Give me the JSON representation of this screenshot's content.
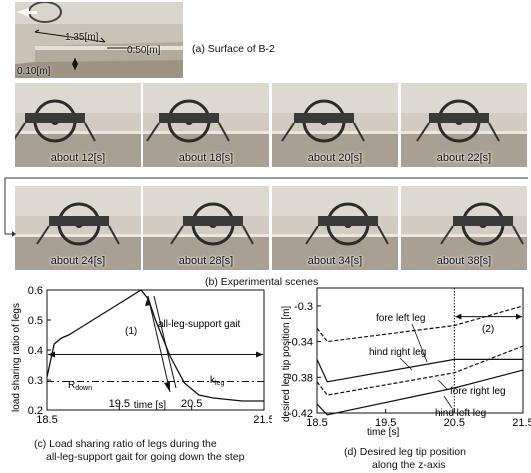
{
  "figure_a": {
    "caption": "(a) Surface of B-2",
    "dims": {
      "d1": "1.35[m]",
      "d2": "0.50[m]",
      "d3": "0.10[m]"
    }
  },
  "figure_b": {
    "caption": "(b) Experimental scenes",
    "frames": [
      "about 12[s]",
      "about 18[s]",
      "about 20[s]",
      "about 22[s]",
      "about 24[s]",
      "about 28[s]",
      "about 34[s]",
      "about 38[s]"
    ]
  },
  "figure_c": {
    "caption_line1": "(c) Load sharing ratio of legs during the",
    "caption_line2": "all-leg-support gait for going down the step",
    "annotations": {
      "gait": "all-leg-support gait",
      "phase": "(1)",
      "k_main": "k",
      "k_sub": "leg",
      "r_main": "R",
      "r_sub": "down"
    }
  },
  "figure_d": {
    "caption_line1": "(d) Desired leg tip position",
    "caption_line2": "along the z-axis",
    "annotations": {
      "phase": "(2)",
      "fore_left": "fore left leg",
      "hind_right": "hind right leg",
      "fore_right": "fore right leg",
      "hind_left": "hind left leg"
    }
  },
  "chart_data": [
    {
      "type": "line",
      "title": "",
      "xlabel": "time [s]",
      "ylabel": "load sharing ratio of legs",
      "xlim": [
        18.5,
        21.5
      ],
      "ylim": [
        0.2,
        0.6
      ],
      "xticks": [
        "18.5",
        "19.5",
        "20.5",
        "21.5"
      ],
      "yticks": [
        "0.2",
        "0.3",
        "0.4",
        "0.5",
        "0.6"
      ],
      "series": [
        {
          "name": "k_leg",
          "x": [
            18.5,
            18.6,
            18.7,
            18.8,
            19.0,
            19.2,
            19.4,
            19.6,
            19.8,
            19.9,
            20.0,
            20.2,
            20.4,
            20.6,
            20.8,
            21.0,
            21.2,
            21.5
          ],
          "values": [
            0.31,
            0.42,
            0.44,
            0.45,
            0.48,
            0.51,
            0.54,
            0.57,
            0.6,
            0.57,
            0.5,
            0.38,
            0.29,
            0.25,
            0.24,
            0.235,
            0.23,
            0.23
          ]
        },
        {
          "name": "R_down",
          "x": [
            18.5,
            21.5
          ],
          "values": [
            0.295,
            0.295
          ]
        }
      ],
      "gait_range": [
        18.5,
        21.5
      ]
    },
    {
      "type": "line",
      "title": "",
      "xlabel": "time [s]",
      "ylabel": "desired leg tip position [m]",
      "xlim": [
        18.5,
        21.5
      ],
      "ylim": [
        -0.42,
        -0.28
      ],
      "xticks": [
        "18.5",
        "19.5",
        "20.5",
        "21.5"
      ],
      "yticks": [
        "-0.3",
        "-0.34",
        "-0.38",
        "-0.42"
      ],
      "vline_x": 20.5,
      "phase2_range": [
        20.5,
        21.5
      ],
      "series": [
        {
          "name": "fore left leg",
          "x": [
            18.5,
            18.65,
            20.5,
            21.5
          ],
          "values": [
            -0.325,
            -0.34,
            -0.322,
            -0.3
          ]
        },
        {
          "name": "hind right leg",
          "x": [
            18.5,
            18.65,
            20.5,
            21.5
          ],
          "values": [
            -0.36,
            -0.385,
            -0.36,
            -0.36
          ]
        },
        {
          "name": "fore right leg",
          "x": [
            18.5,
            18.65,
            20.5,
            21.5
          ],
          "values": [
            -0.385,
            -0.4,
            -0.375,
            -0.345
          ]
        },
        {
          "name": "hind left leg",
          "x": [
            18.5,
            18.65,
            20.5,
            21.5
          ],
          "values": [
            -0.41,
            -0.422,
            -0.392,
            -0.372
          ]
        }
      ]
    }
  ]
}
